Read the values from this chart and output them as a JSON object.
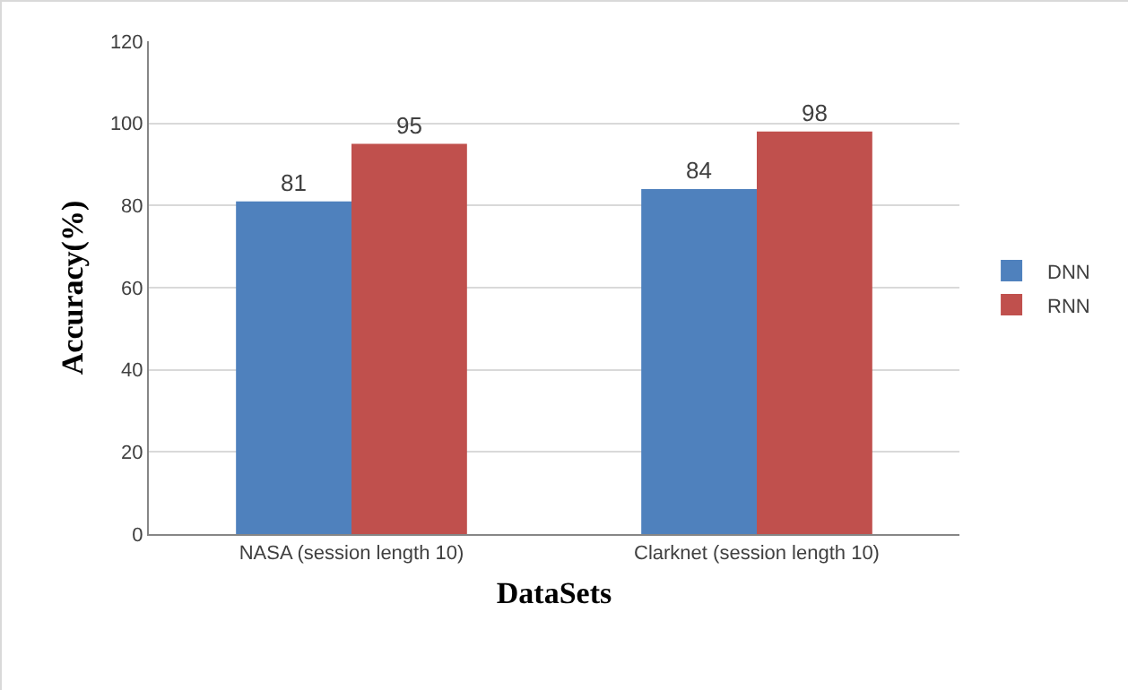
{
  "chart_data": {
    "type": "bar",
    "xlabel": "DataSets",
    "ylabel": "Accuracy(%)",
    "categories": [
      "NASA (session length 10)",
      "Clarknet (session length 10)"
    ],
    "series": [
      {
        "name": "DNN",
        "color": "#4f81bd",
        "values": [
          81,
          84
        ]
      },
      {
        "name": "RNN",
        "color": "#c0504d",
        "values": [
          95,
          98
        ]
      }
    ],
    "ylim": [
      0,
      120
    ],
    "yticks": [
      0,
      20,
      40,
      60,
      80,
      100,
      120
    ],
    "grid": "y",
    "legend": "right",
    "data_labels": true
  }
}
